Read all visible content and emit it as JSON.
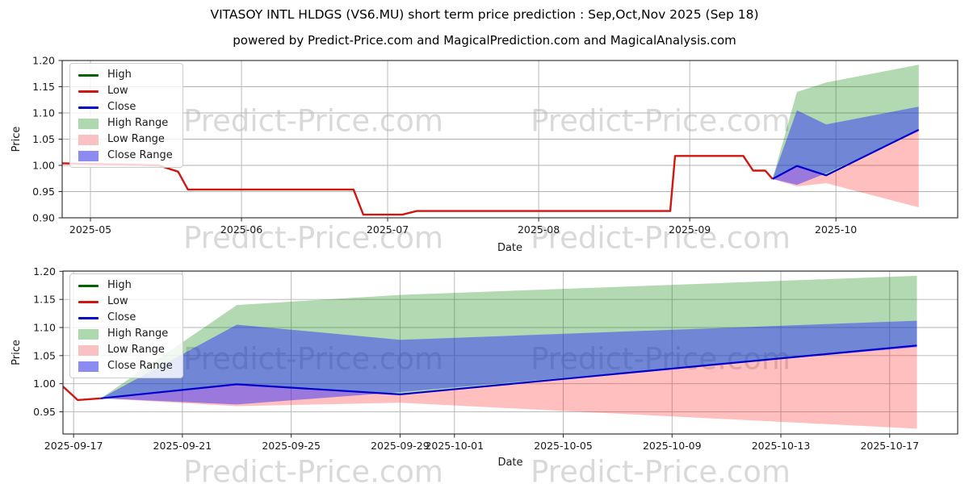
{
  "title": "VITASOY INTL HLDGS (VS6.MU) short term price prediction : Sep,Oct,Nov 2025 (Sep 18)",
  "subtitle": "powered by Predict-Price.com and MagicalPrediction.com and MagicalAnalysis.com",
  "watermark": {
    "text": "Predict-Price.com"
  },
  "colors": {
    "high_line": "#006400",
    "low_line": "#cf1712",
    "close_line": "#0000cd",
    "high_range": "#008000",
    "low_range": "#ff0000",
    "close_range": "#2222ff",
    "grid": "#b3b3b3",
    "spine": "#262626"
  },
  "legend": {
    "items": [
      {
        "label": "High",
        "swatch": "line",
        "color": "#006400"
      },
      {
        "label": "Low",
        "swatch": "line",
        "color": "#cf1712"
      },
      {
        "label": "Close",
        "swatch": "line",
        "color": "#0000cd"
      },
      {
        "label": "High Range",
        "swatch": "patch",
        "color": "#aed8ae"
      },
      {
        "label": "Low Range",
        "swatch": "patch",
        "color": "#f9c1c1"
      },
      {
        "label": "Close Range",
        "swatch": "patch",
        "color": "#8b8bf2"
      }
    ]
  },
  "chart_data": [
    {
      "type": "line",
      "title": "",
      "xlabel": "Date",
      "ylabel": "Price",
      "grid": true,
      "legend_position": "upper left",
      "xlim": [
        -5.8,
        178.0
      ],
      "ylim": [
        0.9,
        1.2
      ],
      "x_epoch": "2025-05-01",
      "x_ticks": [
        {
          "d": 0,
          "label": "2025-05"
        },
        {
          "d": 31,
          "label": "2025-06"
        },
        {
          "d": 61,
          "label": "2025-07"
        },
        {
          "d": 92,
          "label": "2025-08"
        },
        {
          "d": 123,
          "label": "2025-09"
        },
        {
          "d": 153,
          "label": "2025-10"
        }
      ],
      "y_ticks": [
        {
          "v": 0.9,
          "label": "0.90"
        },
        {
          "v": 0.95,
          "label": "0.95"
        },
        {
          "v": 1.0,
          "label": "1.00"
        },
        {
          "v": 1.05,
          "label": "1.05"
        },
        {
          "v": 1.1,
          "label": "1.10"
        },
        {
          "v": 1.15,
          "label": "1.15"
        },
        {
          "v": 1.2,
          "label": "1.20"
        }
      ],
      "bands": [
        {
          "name": "high-range",
          "color": "#008000",
          "opacity": 0.3,
          "upper": [
            [
              140,
              0.974
            ],
            [
              145,
              1.14
            ],
            [
              151,
              1.158
            ],
            [
              170,
              1.192
            ]
          ],
          "lower": [
            [
              140,
              0.974
            ],
            [
              145,
              0.999
            ],
            [
              151,
              0.981
            ],
            [
              170,
              1.068
            ]
          ]
        },
        {
          "name": "low-range",
          "color": "#ff0000",
          "opacity": 0.25,
          "upper": [
            [
              140,
              0.974
            ],
            [
              145,
              0.999
            ],
            [
              151,
              0.981
            ],
            [
              170,
              1.068
            ]
          ],
          "lower": [
            [
              140,
              0.974
            ],
            [
              145,
              0.96
            ],
            [
              151,
              0.966
            ],
            [
              170,
              0.92
            ]
          ]
        },
        {
          "name": "close-range",
          "color": "#2222ff",
          "opacity": 0.45,
          "upper": [
            [
              140,
              0.974
            ],
            [
              145,
              1.105
            ],
            [
              151,
              1.078
            ],
            [
              170,
              1.112
            ]
          ],
          "lower": [
            [
              140,
              0.974
            ],
            [
              145,
              0.963
            ],
            [
              151,
              0.985
            ],
            [
              170,
              1.065
            ]
          ]
        }
      ],
      "series": [
        {
          "name": "Low",
          "color": "#cf1712",
          "width": 2.4,
          "points": [
            [
              -5.8,
              1.004
            ],
            [
              14,
              1.0
            ],
            [
              18,
              0.988
            ],
            [
              20,
              0.954
            ],
            [
              54,
              0.954
            ],
            [
              56,
              0.906
            ],
            [
              64,
              0.906
            ],
            [
              67,
              0.913
            ],
            [
              119,
              0.913
            ],
            [
              120,
              1.018
            ],
            [
              134,
              1.018
            ],
            [
              136,
              0.99
            ],
            [
              138.5,
              0.99
            ],
            [
              140,
              0.974
            ]
          ]
        },
        {
          "name": "Close",
          "color": "#0000cd",
          "width": 2.2,
          "points": [
            [
              140,
              0.974
            ],
            [
              145,
              0.999
            ],
            [
              151,
              0.981
            ],
            [
              170,
              1.068
            ]
          ]
        }
      ]
    },
    {
      "type": "line",
      "title": "",
      "xlabel": "Date",
      "ylabel": "Price",
      "grid": true,
      "legend_position": "upper left",
      "xlim": [
        -0.39,
        32.5
      ],
      "ylim": [
        0.9105,
        1.2005
      ],
      "x_epoch": "2025-09-17",
      "x_ticks": [
        {
          "d": 0,
          "label": "2025-09-17"
        },
        {
          "d": 4,
          "label": "2025-09-21"
        },
        {
          "d": 8,
          "label": "2025-09-25"
        },
        {
          "d": 12,
          "label": "2025-09-29"
        },
        {
          "d": 14,
          "label": "2025-10-01"
        },
        {
          "d": 18,
          "label": "2025-10-05"
        },
        {
          "d": 22,
          "label": "2025-10-09"
        },
        {
          "d": 26,
          "label": "2025-10-13"
        },
        {
          "d": 30,
          "label": "2025-10-17"
        }
      ],
      "y_ticks": [
        {
          "v": 0.95,
          "label": "0.95"
        },
        {
          "v": 1.0,
          "label": "1.00"
        },
        {
          "v": 1.05,
          "label": "1.05"
        },
        {
          "v": 1.1,
          "label": "1.10"
        },
        {
          "v": 1.15,
          "label": "1.15"
        },
        {
          "v": 1.2,
          "label": "1.20"
        }
      ],
      "bands": [
        {
          "name": "high-range",
          "color": "#008000",
          "opacity": 0.3,
          "upper": [
            [
              1,
              0.974
            ],
            [
              6,
              1.14
            ],
            [
              12,
              1.158
            ],
            [
              31,
              1.192
            ]
          ],
          "lower": [
            [
              1,
              0.974
            ],
            [
              6,
              0.999
            ],
            [
              12,
              0.981
            ],
            [
              31,
              1.068
            ]
          ]
        },
        {
          "name": "low-range",
          "color": "#ff0000",
          "opacity": 0.25,
          "upper": [
            [
              1,
              0.974
            ],
            [
              6,
              0.999
            ],
            [
              12,
              0.981
            ],
            [
              31,
              1.068
            ]
          ],
          "lower": [
            [
              1,
              0.974
            ],
            [
              6,
              0.96
            ],
            [
              12,
              0.966
            ],
            [
              31,
              0.92
            ]
          ]
        },
        {
          "name": "close-range",
          "color": "#2222ff",
          "opacity": 0.45,
          "upper": [
            [
              1,
              0.974
            ],
            [
              6,
              1.105
            ],
            [
              12,
              1.078
            ],
            [
              31,
              1.112
            ]
          ],
          "lower": [
            [
              1,
              0.974
            ],
            [
              6,
              0.963
            ],
            [
              12,
              0.985
            ],
            [
              31,
              1.065
            ]
          ]
        }
      ],
      "series": [
        {
          "name": "Low",
          "color": "#cf1712",
          "width": 2.4,
          "points": [
            [
              -0.39,
              0.995
            ],
            [
              0.15,
              0.971
            ],
            [
              1,
              0.974
            ]
          ]
        },
        {
          "name": "Close",
          "color": "#0000cd",
          "width": 2.2,
          "points": [
            [
              1,
              0.974
            ],
            [
              6,
              0.999
            ],
            [
              12,
              0.981
            ],
            [
              31,
              1.068
            ]
          ]
        }
      ]
    }
  ]
}
